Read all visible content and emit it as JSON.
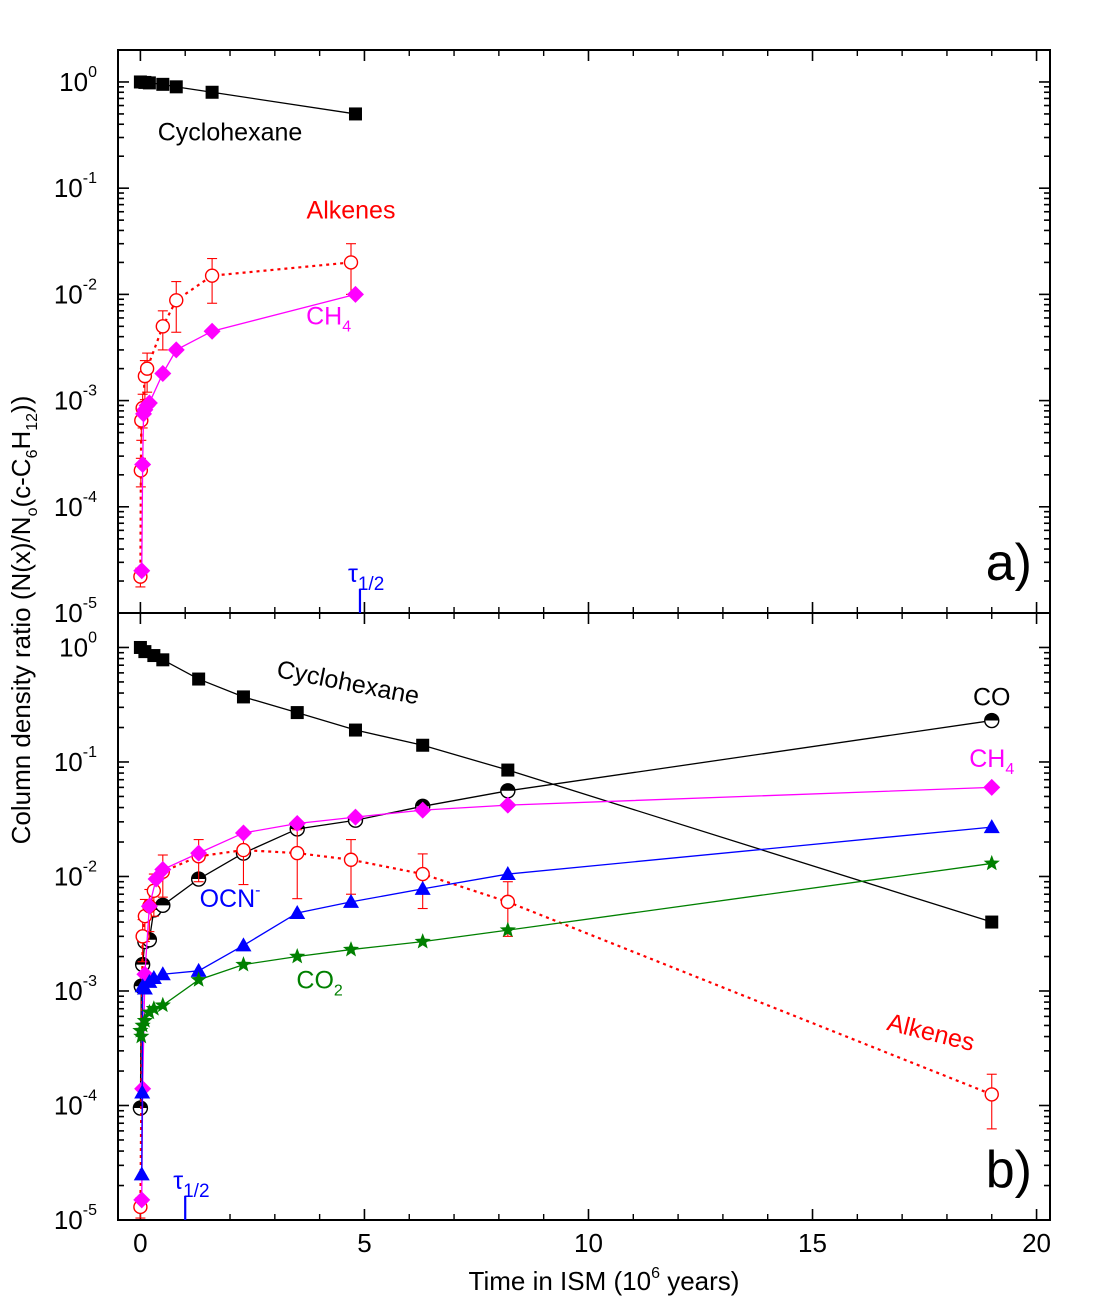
{
  "chart_data": {
    "type": "scatter",
    "xlabel": "Time in ISM (10",
    "xlabel_sup": "6",
    "xlabel_tail": " years)",
    "ylabel": {
      "pre": "Column density ratio (N(x)/N",
      "sub1": "o",
      "mid": "(c-C",
      "sub2": "6",
      "mid2": "H",
      "sub3": "12",
      "post": "))"
    },
    "x_ticks": [
      0,
      5,
      10,
      15,
      20
    ],
    "x_tick_labels": [
      "0",
      "5",
      "10",
      "15",
      "20"
    ],
    "xlim": [
      -0.5,
      20.3
    ],
    "yscale": "log",
    "y_ticks": [
      1e-05,
      0.0001,
      0.001,
      0.01,
      0.1,
      1
    ],
    "y_tick_labels": [
      {
        "base": "10",
        "exp": "-5"
      },
      {
        "base": "10",
        "exp": "-4"
      },
      {
        "base": "10",
        "exp": "-3"
      },
      {
        "base": "10",
        "exp": "-2"
      },
      {
        "base": "10",
        "exp": "-1"
      },
      {
        "base": "10",
        "exp": "0"
      }
    ],
    "panels": [
      {
        "id": "a",
        "label": "a)",
        "ylim": [
          1e-05,
          2.0
        ],
        "tau_marker": {
          "x": 4.9,
          "label": "τ",
          "sub": "1/2"
        },
        "series": [
          {
            "name": "Cyclohexane",
            "color": "#000000",
            "marker": "square",
            "line": "solid",
            "x": [
              0,
              0.1,
              0.2,
              0.5,
              0.8,
              1.6,
              4.8
            ],
            "y": [
              1.0,
              0.99,
              0.98,
              0.95,
              0.9,
              0.8,
              0.5
            ]
          },
          {
            "name": "Alkenes",
            "color": "#ff0000",
            "marker": "open-circle",
            "line": "dotted",
            "x": [
              0.0,
              0.01,
              0.02,
              0.05,
              0.1,
              0.15,
              0.5,
              0.8,
              1.6,
              4.7
            ],
            "y": [
              2.2e-05,
              0.00022,
              0.00065,
              0.00085,
              0.0017,
              0.002,
              0.005,
              0.0088,
              0.015,
              0.02
            ],
            "yerr_rel": [
              0.2,
              0.3,
              0.35,
              0.35,
              0.4,
              0.4,
              0.4,
              0.5,
              0.45,
              0.5
            ]
          },
          {
            "name": "CH4",
            "color": "#ff00ff",
            "marker": "diamond",
            "line": "solid",
            "x": [
              0.03,
              0.05,
              0.07,
              0.1,
              0.15,
              0.2,
              0.5,
              0.8,
              1.6,
              4.8
            ],
            "y": [
              2.5e-05,
              0.00025,
              0.00075,
              0.00082,
              0.0009,
              0.00095,
              0.0018,
              0.003,
              0.0045,
              0.01
            ]
          }
        ],
        "labels": [
          {
            "text": "Cyclohexane",
            "color": "#000000",
            "x": 2.0,
            "y": 0.28,
            "rot": 0
          },
          {
            "text": "Alkenes",
            "color": "#ff0000",
            "x": 4.7,
            "y": 0.052,
            "rot": 0
          },
          {
            "text": "CH",
            "sub": "4",
            "color": "#ff00ff",
            "x": 4.2,
            "y": 0.0052,
            "rot": 0
          }
        ]
      },
      {
        "id": "b",
        "label": "b)",
        "ylim": [
          1e-05,
          2.0
        ],
        "tau_marker": {
          "x": 1.0,
          "label": "τ",
          "sub": "1/2"
        },
        "series": [
          {
            "name": "Cyclohexane",
            "color": "#000000",
            "marker": "square",
            "line": "solid",
            "x": [
              0,
              0.1,
              0.3,
              0.5,
              1.3,
              2.3,
              3.5,
              4.8,
              6.3,
              8.2,
              19.0
            ],
            "y": [
              1.0,
              0.92,
              0.85,
              0.78,
              0.53,
              0.37,
              0.27,
              0.19,
              0.14,
              0.085,
              0.004
            ]
          },
          {
            "name": "CO",
            "color": "#000000",
            "marker": "half-circle",
            "line": "solid",
            "x": [
              0.0,
              0.02,
              0.05,
              0.1,
              0.2,
              0.3,
              0.5,
              1.3,
              2.3,
              3.5,
              4.8,
              6.3,
              8.2,
              19.0
            ],
            "y": [
              9.5e-05,
              0.0011,
              0.0017,
              0.0027,
              0.0028,
              0.0051,
              0.0056,
              0.0095,
              0.016,
              0.026,
              0.031,
              0.041,
              0.056,
              0.23
            ]
          },
          {
            "name": "Alkenes",
            "color": "#ff0000",
            "marker": "open-circle",
            "line": "dotted",
            "x": [
              0.0,
              0.05,
              0.1,
              0.2,
              0.3,
              0.5,
              1.3,
              2.3,
              3.5,
              4.7,
              6.3,
              8.2,
              19.0
            ],
            "y": [
              1.3e-05,
              0.003,
              0.0045,
              0.0055,
              0.0075,
              0.011,
              0.015,
              0.017,
              0.016,
              0.014,
              0.0105,
              0.006,
              0.000125
            ],
            "yerr_rel": [
              0.2,
              0.4,
              0.4,
              0.4,
              0.4,
              0.4,
              0.4,
              0.5,
              0.6,
              0.5,
              0.5,
              0.5,
              0.5
            ]
          },
          {
            "name": "CH4",
            "color": "#ff00ff",
            "marker": "diamond",
            "line": "solid",
            "x": [
              0.03,
              0.05,
              0.1,
              0.2,
              0.35,
              0.5,
              1.3,
              2.3,
              3.5,
              4.8,
              6.3,
              8.2,
              19.0
            ],
            "y": [
              1.5e-05,
              0.00014,
              0.0014,
              0.0055,
              0.0095,
              0.0115,
              0.016,
              0.024,
              0.029,
              0.033,
              0.038,
              0.042,
              0.06
            ]
          },
          {
            "name": "OCN-",
            "color": "#0000ff",
            "marker": "triangle",
            "line": "solid",
            "x": [
              0.03,
              0.04,
              0.05,
              0.1,
              0.2,
              0.3,
              0.5,
              1.3,
              2.3,
              3.5,
              4.7,
              6.3,
              8.2,
              19.0
            ],
            "y": [
              2.5e-05,
              0.00013,
              0.0011,
              0.00105,
              0.0012,
              0.0013,
              0.0014,
              0.0015,
              0.0025,
              0.0048,
              0.006,
              0.0078,
              0.0105,
              0.027
            ]
          },
          {
            "name": "CO2",
            "color": "#008000",
            "marker": "star",
            "line": "solid",
            "x": [
              0.0,
              0.02,
              0.05,
              0.1,
              0.2,
              0.3,
              0.5,
              1.3,
              2.3,
              3.5,
              4.7,
              6.3,
              8.2,
              19.0
            ],
            "y": [
              0.00045,
              0.0004,
              0.0005,
              0.00055,
              0.00065,
              0.0007,
              0.00075,
              0.00125,
              0.0017,
              0.002,
              0.0023,
              0.0027,
              0.0034,
              0.013
            ]
          }
        ],
        "labels": [
          {
            "text": "Cyclohexane",
            "color": "#000000",
            "x": 4.6,
            "y": 0.42,
            "rot": 11
          },
          {
            "text": "CO",
            "color": "#000000",
            "x": 19.0,
            "y": 0.31,
            "rot": 0
          },
          {
            "text": "CH",
            "sub": "4",
            "color": "#ff00ff",
            "x": 19.0,
            "y": 0.09,
            "rot": 0
          },
          {
            "text": "OCN",
            "sup": "-",
            "color": "#0000ff",
            "x": 2.0,
            "y": 0.0054,
            "rot": 0
          },
          {
            "text": "CO",
            "sub": "2",
            "color": "#008000",
            "x": 4.0,
            "y": 0.00105,
            "rot": 0
          },
          {
            "text": "Alkenes",
            "color": "#ff0000",
            "x": 17.6,
            "y": 0.00037,
            "rot": 14
          }
        ]
      }
    ]
  }
}
